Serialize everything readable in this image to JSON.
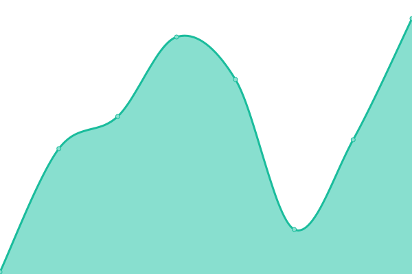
{
  "chart_data": {
    "type": "area",
    "title": "",
    "xlabel": "",
    "ylabel": "",
    "x": [
      0,
      1,
      2,
      3,
      4,
      5,
      6,
      7
    ],
    "series": [
      {
        "values": [
          3,
          183,
          230,
          346,
          284,
          65,
          196,
          373
        ]
      }
    ],
    "ylim": [
      0,
      400
    ],
    "xlim": [
      0,
      7
    ],
    "grid": false,
    "axes_visible": false,
    "smooth": true,
    "colors": {
      "line": "#1abc9c",
      "fill": "#88dfcf",
      "point": "#88dfcf"
    }
  }
}
